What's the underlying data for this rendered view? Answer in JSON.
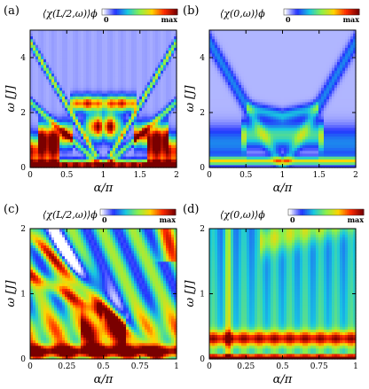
{
  "chart_data": [
    {
      "type": "heatmap",
      "panel_label": "(a)",
      "title": "⟨χ(L/2,ω)⟩ϕ",
      "xlabel": "α/π",
      "ylabel": "ω [J]",
      "xlim": [
        0,
        2
      ],
      "ylim": [
        0,
        5
      ],
      "xticks": [
        0,
        0.5,
        1,
        1.5,
        2
      ],
      "xtick_labels": [
        "0",
        "0.5",
        "1",
        "1.5",
        "2"
      ],
      "yticks": [
        0,
        2,
        4
      ],
      "ytick_labels": [
        "0",
        "2",
        "4"
      ],
      "colorbar": {
        "min_label": "0",
        "max_label": "max",
        "colors": [
          "#ffffff",
          "#2433ff",
          "#18c8e0",
          "#8bf04a",
          "#ffd400",
          "#ff2a00",
          "#7a0000"
        ]
      }
    },
    {
      "type": "heatmap",
      "panel_label": "(b)",
      "title": "⟨χ(0,ω)⟩ϕ",
      "xlabel": "α/π",
      "ylabel": "ω [J]",
      "xlim": [
        0,
        2
      ],
      "ylim": [
        0,
        5
      ],
      "xticks": [
        0,
        0.5,
        1,
        1.5,
        2
      ],
      "xtick_labels": [
        "0",
        "0.5",
        "1",
        "1.5",
        "2"
      ],
      "yticks": [
        0,
        2,
        4
      ],
      "ytick_labels": [
        "0",
        "2",
        "4"
      ],
      "colorbar": {
        "min_label": "0",
        "max_label": "max",
        "colors": [
          "#ffffff",
          "#2433ff",
          "#18c8e0",
          "#8bf04a",
          "#ffd400",
          "#ff2a00",
          "#7a0000"
        ]
      }
    },
    {
      "type": "heatmap",
      "panel_label": "(c)",
      "title": "⟨χ(L/2,ω)⟩ϕ",
      "xlabel": "α/π",
      "ylabel": "ω [J]",
      "xlim": [
        0,
        1
      ],
      "ylim": [
        0,
        2
      ],
      "xticks": [
        0,
        0.25,
        0.5,
        0.75,
        1
      ],
      "xtick_labels": [
        "0",
        "0.25",
        "0.5",
        "0.75",
        "1"
      ],
      "yticks": [
        0,
        1,
        2
      ],
      "ytick_labels": [
        "0",
        "1",
        "2"
      ],
      "colorbar": {
        "min_label": "0",
        "max_label": "max",
        "colors": [
          "#ffffff",
          "#2433ff",
          "#18c8e0",
          "#8bf04a",
          "#ffd400",
          "#ff2a00",
          "#7a0000"
        ]
      }
    },
    {
      "type": "heatmap",
      "panel_label": "(d)",
      "title": "⟨χ(0,ω)⟩ϕ",
      "xlabel": "α/π",
      "ylabel": "ω [J]",
      "xlim": [
        0,
        1
      ],
      "ylim": [
        0,
        2
      ],
      "xticks": [
        0,
        0.25,
        0.5,
        0.75,
        1
      ],
      "xtick_labels": [
        "0",
        "0.25",
        "0.5",
        "0.75",
        "1"
      ],
      "yticks": [
        0,
        1,
        2
      ],
      "ytick_labels": [
        "0",
        "1",
        "2"
      ],
      "colorbar": {
        "min_label": "0",
        "max_label": "max",
        "colors": [
          "#ffffff",
          "#2433ff",
          "#18c8e0",
          "#8bf04a",
          "#ffd400",
          "#ff2a00",
          "#7a0000"
        ]
      }
    }
  ]
}
